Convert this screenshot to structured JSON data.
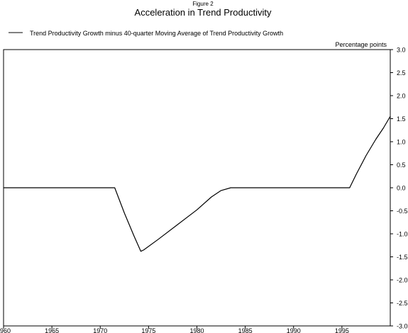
{
  "chart_data": {
    "type": "line",
    "figure_label": "Figure 2",
    "title": "Acceleration in Trend Productivity",
    "ylabel": "Percentage points",
    "xlim": [
      1960,
      2000
    ],
    "ylim": [
      -3.0,
      3.0
    ],
    "x_ticks": [
      "1960",
      "1965",
      "1970",
      "1975",
      "1980",
      "1985",
      "1990",
      "1995"
    ],
    "y_ticks": [
      "3.0",
      "2.5",
      "2.0",
      "1.5",
      "1.0",
      "0.5",
      "0.0",
      "-0.5",
      "-1.0",
      "-1.5",
      "-2.0",
      "-2.5",
      "-3.0"
    ],
    "grid": false,
    "legend_position": "top-left",
    "series": [
      {
        "name": "Trend Productivity Growth minus 40-quarter Moving Average of Trend Productivity Growth",
        "color": "#000000",
        "points": [
          [
            1960.0,
            0.0
          ],
          [
            1965.0,
            0.0
          ],
          [
            1970.0,
            0.0
          ],
          [
            1971.5,
            0.0
          ],
          [
            1972.5,
            -0.55
          ],
          [
            1973.5,
            -1.05
          ],
          [
            1974.2,
            -1.38
          ],
          [
            1974.5,
            -1.35
          ],
          [
            1976.0,
            -1.12
          ],
          [
            1978.0,
            -0.8
          ],
          [
            1980.0,
            -0.48
          ],
          [
            1981.5,
            -0.2
          ],
          [
            1982.5,
            -0.06
          ],
          [
            1983.5,
            0.0
          ],
          [
            1985.0,
            0.0
          ],
          [
            1990.0,
            0.0
          ],
          [
            1995.0,
            0.0
          ],
          [
            1995.8,
            0.0
          ],
          [
            1996.5,
            0.3
          ],
          [
            1997.5,
            0.7
          ],
          [
            1998.5,
            1.05
          ],
          [
            1999.3,
            1.3
          ],
          [
            2000.0,
            1.55
          ]
        ]
      }
    ]
  }
}
